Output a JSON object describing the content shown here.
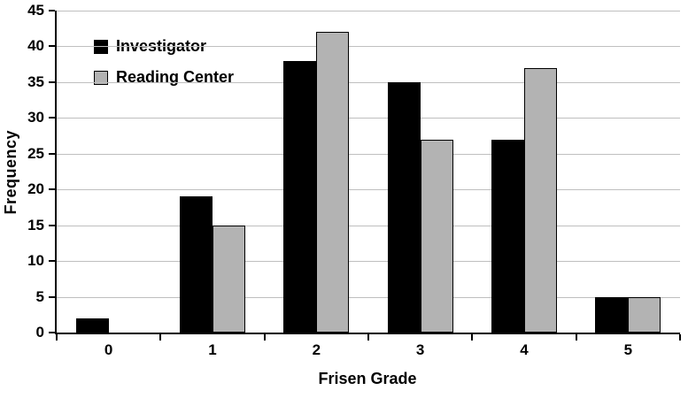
{
  "chart_data": {
    "type": "bar",
    "title": "",
    "xlabel": "Frisen Grade",
    "ylabel": "Frequency",
    "categories": [
      "0",
      "1",
      "2",
      "3",
      "4",
      "5"
    ],
    "series": [
      {
        "name": "Investigator",
        "color": "#000000",
        "values": [
          2,
          19,
          38,
          35,
          27,
          5
        ]
      },
      {
        "name": "Reading Center",
        "color": "#b3b3b3",
        "values": [
          0,
          15,
          42,
          27,
          37,
          5
        ]
      }
    ],
    "ylim": [
      0,
      45
    ],
    "ytick_step": 5,
    "grid": "horizontal",
    "legend_position": "top-left-inside"
  },
  "colors": {
    "background": "#ffffff",
    "gridline": "#bfbfbf",
    "axis": "#000000",
    "bar_border": "#000000"
  }
}
